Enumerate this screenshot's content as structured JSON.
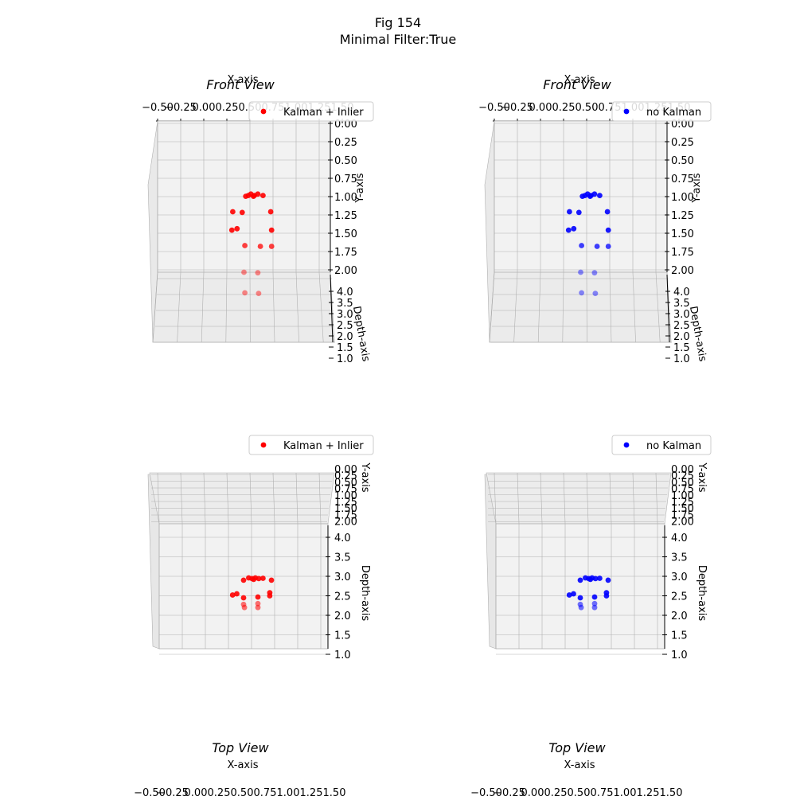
{
  "suptitle": [
    "Fig 154",
    "Minimal Filter:True"
  ],
  "colors": {
    "kalman": "#ff0000",
    "no_kalman": "#0000ff",
    "pane": "#f2f2f2",
    "grid": "#b0b0b0"
  },
  "chart_data": [
    {
      "type": "scatter",
      "view": "front",
      "title": "Front View",
      "xlabel": "X-axis",
      "ylabel": "Y-axis",
      "zlabel": "Depth-axis",
      "xticks": [
        "−0.50",
        "−0.25",
        "0.00",
        "0.25",
        "0.50",
        "0.75",
        "1.00",
        "1.25",
        "1.50"
      ],
      "yticks": [
        "0.00",
        "0.25",
        "0.50",
        "0.75",
        "1.00",
        "1.25",
        "1.50",
        "1.75",
        "2.00"
      ],
      "zticks": [
        "4.0",
        "3.5",
        "3.0",
        "2.5",
        "2.0",
        "1.5",
        "1.0"
      ],
      "series": [
        {
          "name": "Kalman + Inlier",
          "color": "#ff0000",
          "points": [
            [
              0.55,
              0.98
            ],
            [
              0.58,
              0.96
            ],
            [
              0.62,
              0.98
            ],
            [
              0.66,
              0.96
            ],
            [
              0.72,
              0.98
            ],
            [
              0.52,
              0.99
            ],
            [
              0.61,
              0.99
            ],
            [
              0.37,
              1.2
            ],
            [
              0.48,
              1.21
            ],
            [
              0.81,
              1.2
            ],
            [
              0.36,
              1.45
            ],
            [
              0.42,
              1.43
            ],
            [
              0.82,
              1.45
            ],
            [
              0.51,
              1.66
            ],
            [
              0.69,
              1.67
            ],
            [
              0.82,
              1.67
            ],
            [
              0.5,
              2.0
            ],
            [
              0.66,
              2.01
            ],
            [
              0.51,
              2.35
            ],
            [
              0.67,
              2.36
            ]
          ]
        }
      ]
    },
    {
      "type": "scatter",
      "view": "front",
      "title": "Front View",
      "xlabel": "X-axis",
      "ylabel": "Y-axis",
      "zlabel": "Depth-axis",
      "xticks": [
        "−0.50",
        "−0.25",
        "0.00",
        "0.25",
        "0.50",
        "0.75",
        "1.00",
        "1.25",
        "1.50"
      ],
      "yticks": [
        "0.00",
        "0.25",
        "0.50",
        "0.75",
        "1.00",
        "1.25",
        "1.50",
        "1.75",
        "2.00"
      ],
      "zticks": [
        "4.0",
        "3.5",
        "3.0",
        "2.5",
        "2.0",
        "1.5",
        "1.0"
      ],
      "series": [
        {
          "name": "no Kalman",
          "color": "#0000ff",
          "points": [
            [
              0.55,
              0.98
            ],
            [
              0.58,
              0.96
            ],
            [
              0.62,
              0.98
            ],
            [
              0.66,
              0.96
            ],
            [
              0.72,
              0.98
            ],
            [
              0.52,
              0.99
            ],
            [
              0.61,
              0.99
            ],
            [
              0.37,
              1.2
            ],
            [
              0.48,
              1.21
            ],
            [
              0.81,
              1.2
            ],
            [
              0.36,
              1.45
            ],
            [
              0.42,
              1.43
            ],
            [
              0.82,
              1.45
            ],
            [
              0.51,
              1.66
            ],
            [
              0.69,
              1.67
            ],
            [
              0.82,
              1.67
            ],
            [
              0.5,
              2.0
            ],
            [
              0.66,
              2.01
            ],
            [
              0.51,
              2.35
            ],
            [
              0.67,
              2.36
            ]
          ]
        }
      ]
    },
    {
      "type": "scatter",
      "view": "top",
      "title": "Top View",
      "xlabel": "X-axis",
      "ylabel": "Y-axis",
      "zlabel": "Depth-axis",
      "xticks": [
        "−0.50",
        "−0.25",
        "0.00",
        "0.25",
        "0.50",
        "0.75",
        "1.00",
        "1.25",
        "1.50"
      ],
      "yticks": [
        "0.00",
        "0.25",
        "0.50",
        "0.75",
        "1.00",
        "1.25",
        "1.50",
        "1.75",
        "2.00"
      ],
      "zticks": [
        "4.0",
        "3.5",
        "3.0",
        "2.5",
        "2.0",
        "1.5",
        "1.0"
      ],
      "series": [
        {
          "name": "Kalman + Inlier",
          "color": "#ff0000",
          "points": [
            [
              0.56,
              2.96
            ],
            [
              0.6,
              2.94
            ],
            [
              0.64,
              2.96
            ],
            [
              0.68,
              2.94
            ],
            [
              0.73,
              2.95
            ],
            [
              0.5,
              2.9
            ],
            [
              0.62,
              2.92
            ],
            [
              0.37,
              2.52
            ],
            [
              0.42,
              2.55
            ],
            [
              0.81,
              2.58
            ],
            [
              0.81,
              2.5
            ],
            [
              0.83,
              2.9
            ],
            [
              0.5,
              2.45
            ],
            [
              0.67,
              2.47
            ],
            [
              0.5,
              2.28
            ],
            [
              0.67,
              2.3
            ],
            [
              0.51,
              2.2
            ],
            [
              0.67,
              2.2
            ]
          ]
        }
      ]
    },
    {
      "type": "scatter",
      "view": "top",
      "title": "Top View",
      "xlabel": "X-axis",
      "ylabel": "Y-axis",
      "zlabel": "Depth-axis",
      "xticks": [
        "−0.50",
        "−0.25",
        "0.00",
        "0.25",
        "0.50",
        "0.75",
        "1.00",
        "1.25",
        "1.50"
      ],
      "yticks": [
        "0.00",
        "0.25",
        "0.50",
        "0.75",
        "1.00",
        "1.25",
        "1.50",
        "1.75",
        "2.00"
      ],
      "zticks": [
        "4.0",
        "3.5",
        "3.0",
        "2.5",
        "2.0",
        "1.5",
        "1.0"
      ],
      "series": [
        {
          "name": "no Kalman",
          "color": "#0000ff",
          "points": [
            [
              0.56,
              2.96
            ],
            [
              0.6,
              2.94
            ],
            [
              0.64,
              2.96
            ],
            [
              0.68,
              2.94
            ],
            [
              0.73,
              2.95
            ],
            [
              0.5,
              2.9
            ],
            [
              0.62,
              2.92
            ],
            [
              0.37,
              2.52
            ],
            [
              0.42,
              2.55
            ],
            [
              0.81,
              2.58
            ],
            [
              0.81,
              2.5
            ],
            [
              0.83,
              2.9
            ],
            [
              0.5,
              2.45
            ],
            [
              0.67,
              2.47
            ],
            [
              0.5,
              2.28
            ],
            [
              0.67,
              2.3
            ],
            [
              0.51,
              2.2
            ],
            [
              0.67,
              2.2
            ]
          ]
        }
      ]
    }
  ]
}
